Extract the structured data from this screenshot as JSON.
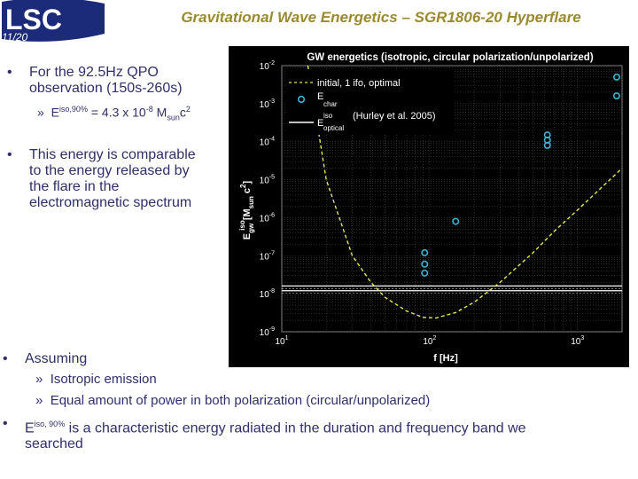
{
  "logo": {
    "text": "LSC",
    "page": "11/20"
  },
  "title": "Gravitational Wave Energetics – SGR1806-20 Hyperflare",
  "bullets": {
    "b1_line1": "For the 92.5Hz QPO",
    "b1_line2": "observation (150s-260s)",
    "b1_sub_prefix": "»",
    "b1_sub_E": "E",
    "b1_sub_sup": "iso,90%",
    "b1_sub_value": " = 4.3 x 10",
    "b1_sub_exp": "-8",
    "b1_sub_unit": " M",
    "b1_sub_unit_sub": "sun",
    "b1_sub_c": "c",
    "b1_sub_c_exp": "2",
    "b2_line1": "This energy is comparable",
    "b2_line2": "to the energy released by",
    "b2_line3": "the flare in the",
    "b2_line4": "electromagnetic spectrum",
    "b3_line1": "Assuming",
    "b3_sub1": "Isotropic emission",
    "b3_sub2": "Equal amount of power in both polarization (circular/unpolarized)",
    "b4_E": "E",
    "b4_sup": "iso, 90%",
    "b4_rest": " is a characteristic energy radiated in the duration and frequency band we",
    "b4_line2": "searched"
  },
  "chart_data": {
    "type": "scatter",
    "title": "GW energetics (isotropic, circular polarization/unpolarized)",
    "xlabel": "f [Hz]",
    "ylabel_main": "E",
    "ylabel_sub": "gw",
    "ylabel_sup": "iso",
    "ylabel_unit": "[M",
    "ylabel_unit_sub": "sun",
    "ylabel_unit_end": " c",
    "ylabel_unit_exp": "2",
    "ylabel_close": "]",
    "x_scale": "log",
    "y_scale": "log",
    "xlim": [
      10,
      2000
    ],
    "ylim": [
      1e-09,
      0.01
    ],
    "grid": true,
    "legend": [
      {
        "label": "initial, 1 ifo, optimal",
        "style": "dashed",
        "color": "#e8e84a"
      },
      {
        "label": "E",
        "sub": "char",
        "marker": "circle",
        "color": "#3ab4d6"
      },
      {
        "label": "E",
        "sup": "iso",
        "sub": "optical",
        "extra": "(Hurley et al. 2005)",
        "style": "solid",
        "color": "#ffffff"
      }
    ],
    "xticks": [
      {
        "base": "10",
        "exp": "1",
        "value": 10
      },
      {
        "base": "10",
        "exp": "2",
        "value": 100
      },
      {
        "base": "10",
        "exp": "3",
        "value": 1000
      }
    ],
    "yticks": [
      {
        "base": "10",
        "exp": "-2",
        "value": 0.01
      },
      {
        "base": "10",
        "exp": "-3",
        "value": 0.001
      },
      {
        "base": "10",
        "exp": "-4",
        "value": 0.0001
      },
      {
        "base": "10",
        "exp": "-5",
        "value": 1e-05
      },
      {
        "base": "10",
        "exp": "-6",
        "value": 1e-06
      },
      {
        "base": "10",
        "exp": "-7",
        "value": 1e-07
      },
      {
        "base": "10",
        "exp": "-8",
        "value": 1e-08
      },
      {
        "base": "10",
        "exp": "-9",
        "value": 1e-09
      }
    ],
    "sensitivity_curve": [
      [
        15,
        0.01
      ],
      [
        20,
        1e-05
      ],
      [
        30,
        1e-07
      ],
      [
        40,
        2e-08
      ],
      [
        50,
        8e-09
      ],
      [
        70,
        3.5e-09
      ],
      [
        90,
        2.4e-09
      ],
      [
        110,
        2.3e-09
      ],
      [
        150,
        3.2e-09
      ],
      [
        200,
        6e-09
      ],
      [
        300,
        2e-08
      ],
      [
        500,
        1.2e-07
      ],
      [
        700,
        4.5e-07
      ],
      [
        1000,
        1.6e-06
      ],
      [
        1500,
        7e-06
      ],
      [
        2000,
        2e-05
      ]
    ],
    "optical_lines": [
      1.6e-08,
      1.2e-08
    ],
    "points": [
      {
        "x": 92.5,
        "y": 1.2e-07
      },
      {
        "x": 92.5,
        "y": 6e-08
      },
      {
        "x": 92.5,
        "y": 3.5e-08
      },
      {
        "x": 150,
        "y": 8e-07
      },
      {
        "x": 625,
        "y": 0.00015
      },
      {
        "x": 625,
        "y": 0.00011
      },
      {
        "x": 625,
        "y": 8e-05
      },
      {
        "x": 1840,
        "y": 0.005
      },
      {
        "x": 1840,
        "y": 0.0016
      }
    ]
  }
}
